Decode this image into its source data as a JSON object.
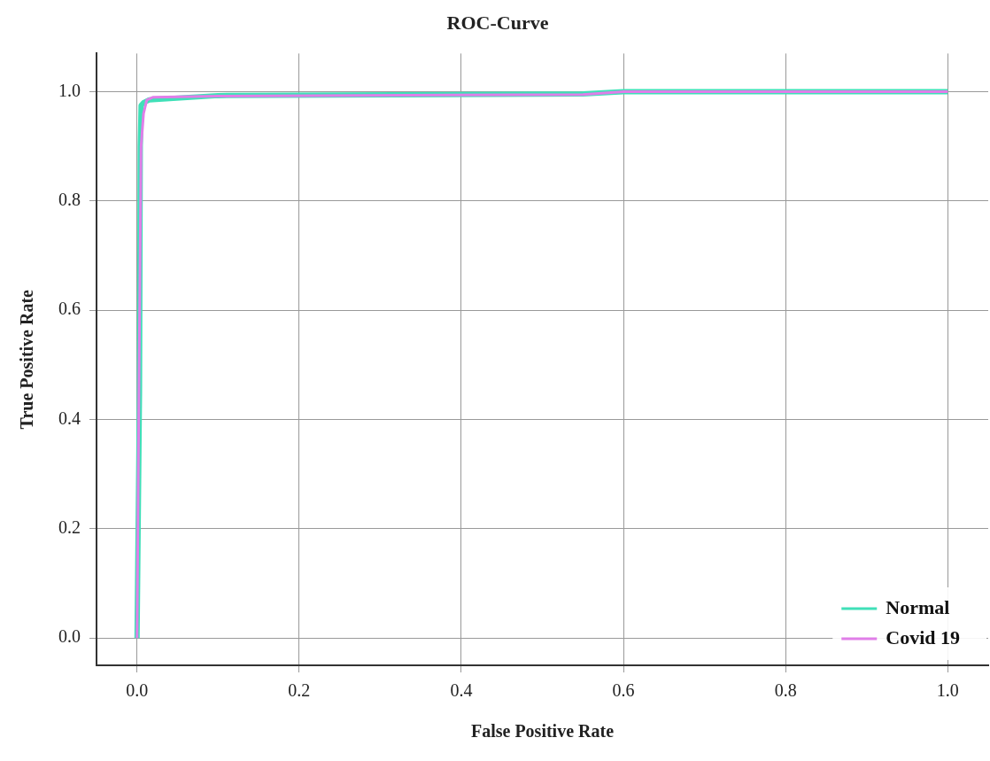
{
  "chart_data": {
    "type": "line",
    "title": "ROC-Curve",
    "xlabel": "False Positive Rate",
    "ylabel": "True Positive Rate",
    "xlim": [
      -0.05,
      1.05
    ],
    "xticks": [
      {
        "value": 0,
        "label": "0.0"
      },
      0.2,
      0.4,
      0.6,
      0.8,
      {
        "value": 1,
        "label": "1.0"
      }
    ],
    "ylim": [
      -0.05,
      1.07
    ],
    "yticks": [
      {
        "value": 0,
        "label": "0.0"
      },
      0.2,
      0.4,
      0.6,
      0.8,
      {
        "value": 1,
        "label": "1.0"
      }
    ],
    "grid": true,
    "legend": "bottom right",
    "marker": "none",
    "line_style": "solid",
    "series": [
      {
        "name": "Normal",
        "color": "#40e0b8",
        "x": [
          0,
          0.003,
          0.004,
          0.005,
          0.008,
          0.015,
          0.1,
          0.55,
          0.6,
          1
        ],
        "values": [
          0,
          0.45,
          0.9,
          0.975,
          0.98,
          0.985,
          0.993,
          0.996,
          1,
          1
        ]
      },
      {
        "name": "Covid 19",
        "color": "#e07ee8",
        "x": [
          0,
          0.002,
          0.005,
          0.008,
          0.012,
          0.02,
          0.1,
          0.55,
          0.6,
          1
        ],
        "values": [
          0,
          0.4,
          0.9,
          0.96,
          0.985,
          0.99,
          0.992,
          0.995,
          1,
          1
        ]
      }
    ]
  }
}
